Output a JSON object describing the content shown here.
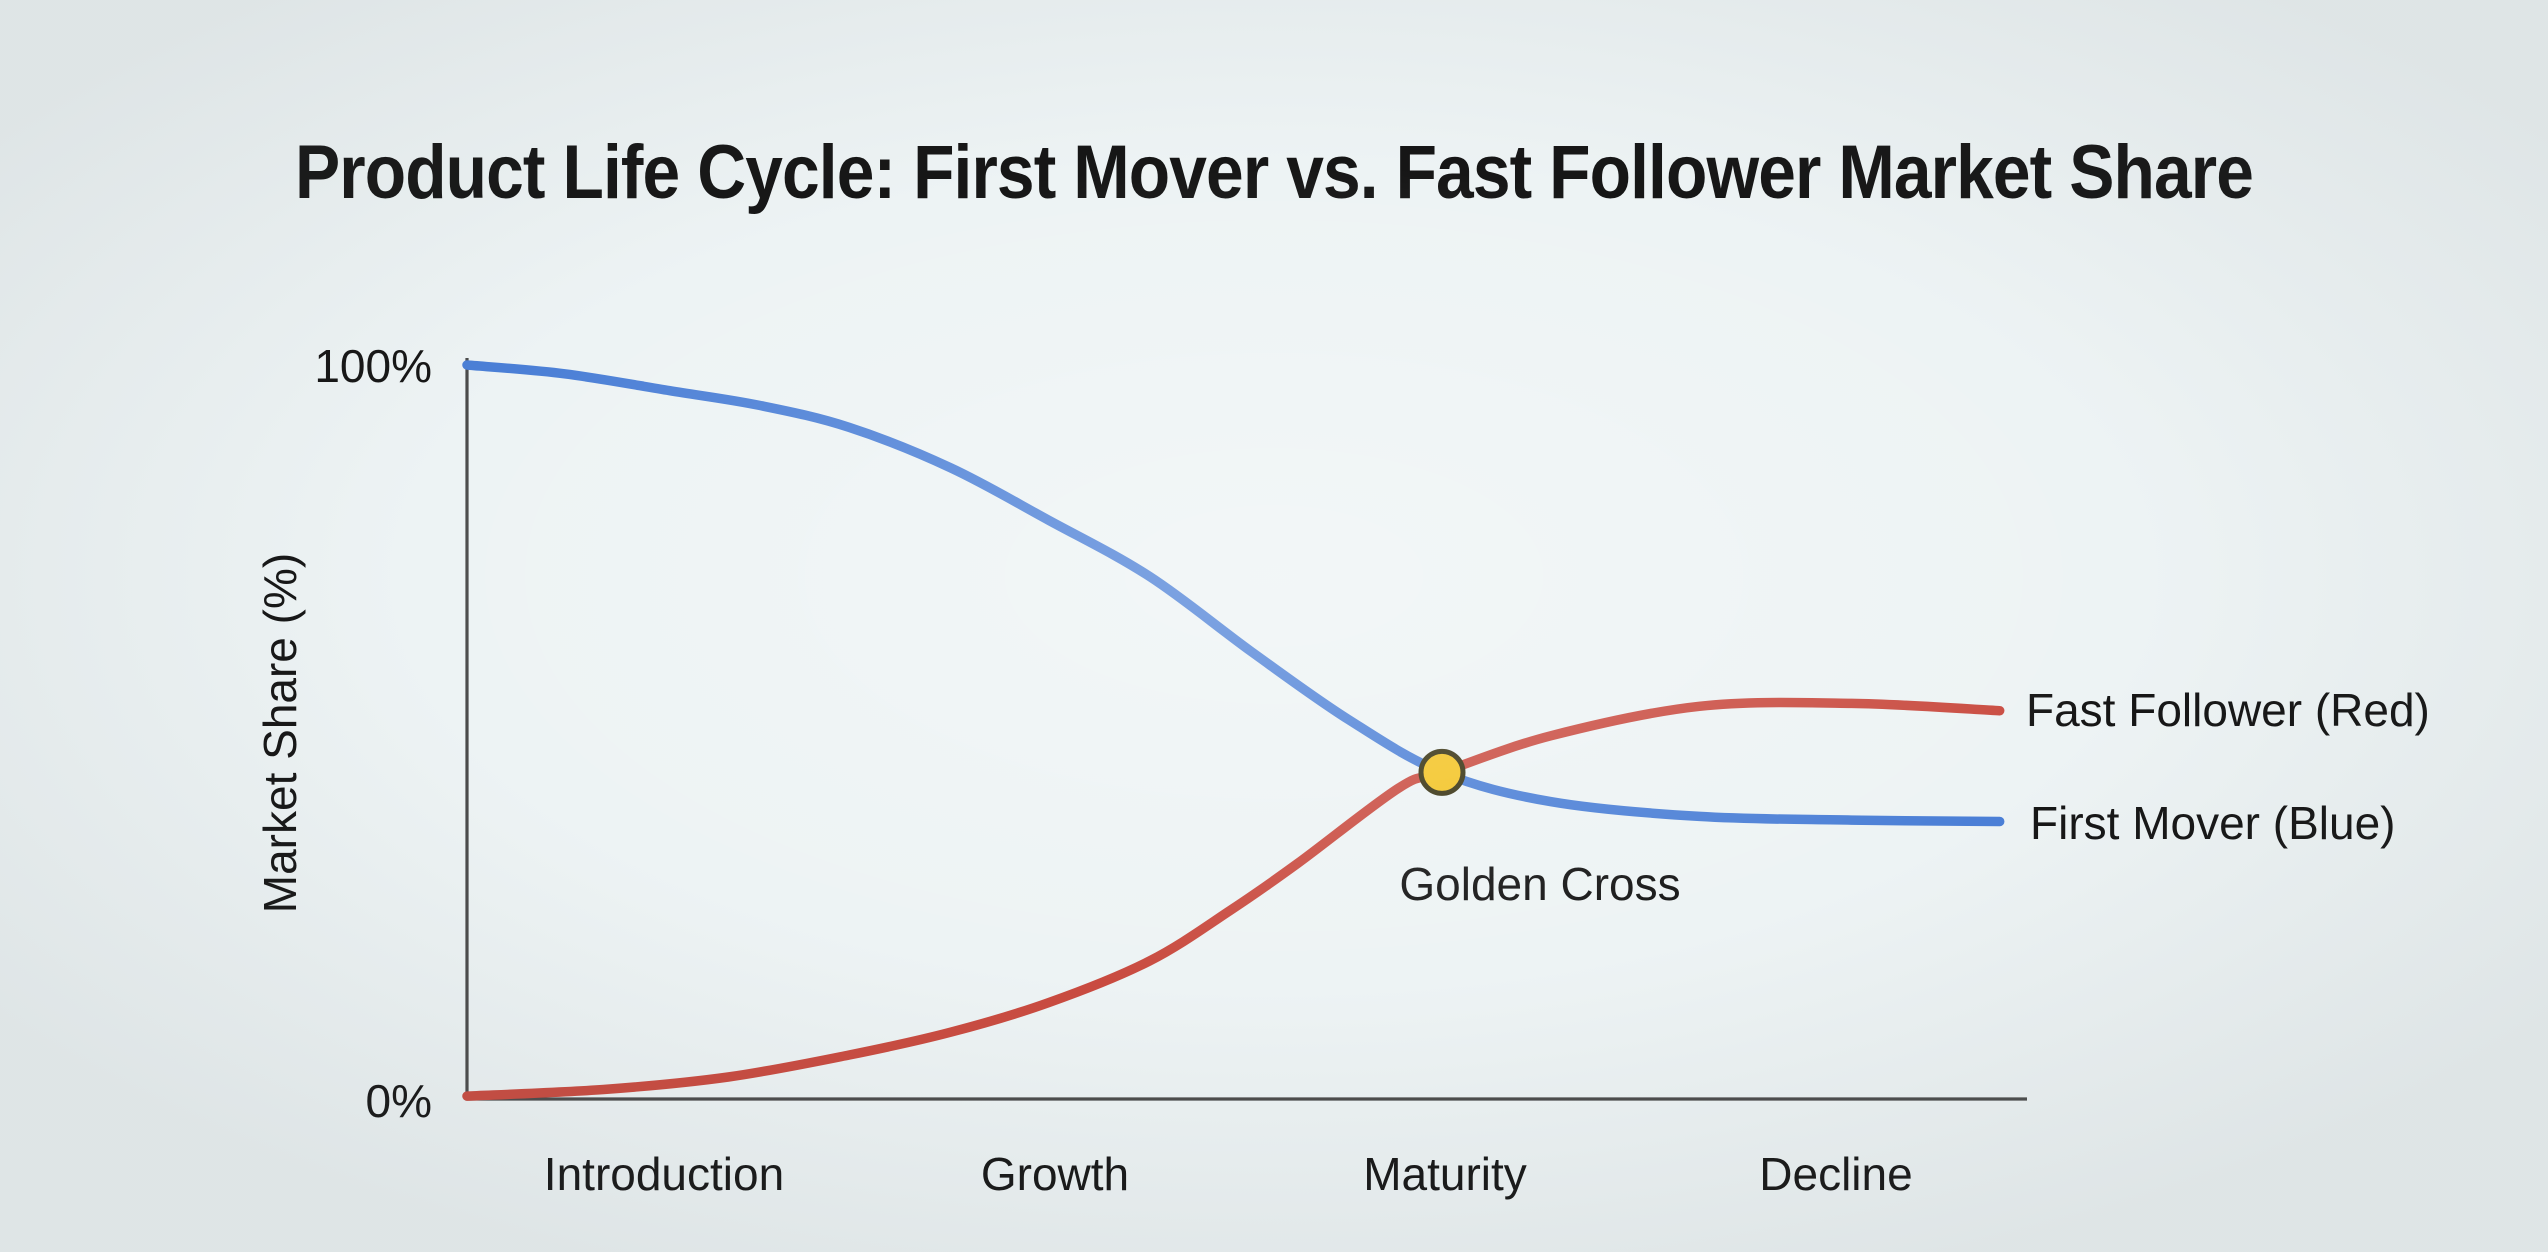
{
  "page": {
    "background": "#edf3f4"
  },
  "chart_data": {
    "type": "line",
    "title": "Product Life Cycle: First Mover vs. Fast Follower Market Share",
    "xlabel": "",
    "ylabel": "Market Share (%)",
    "ylim": [
      0,
      100
    ],
    "grid": false,
    "y_tick_labels": {
      "top": "100%",
      "bottom": "0%"
    },
    "x_stage_labels": [
      "Introduction",
      "Growth",
      "Maturity",
      "Decline"
    ],
    "legend_position": "right-of-line-ends",
    "axis_color": "#4b4b4b",
    "text_color": "#161616",
    "series": [
      {
        "id": "first_mover",
        "label": "First Mover (Blue)",
        "color": "#4b7fd6",
        "x_stage": [
          0,
          0.25,
          0.52,
          0.75,
          0.98,
          1.24,
          1.49,
          1.75,
          2.01,
          2.26,
          2.5,
          2.78,
          3.16,
          3.55,
          3.93
        ],
        "y_pct": [
          100,
          98.8,
          96.5,
          94.5,
          91.5,
          86.0,
          78.9,
          71.2,
          61.0,
          51.7,
          44.5,
          40.5,
          38.5,
          38.0,
          37.8
        ]
      },
      {
        "id": "fast_follower",
        "label": "Fast Follower (Red)",
        "color": "#c94b40",
        "x_stage": [
          0,
          0.35,
          0.67,
          0.98,
          1.24,
          1.49,
          1.75,
          1.96,
          2.13,
          2.39,
          2.5,
          2.78,
          3.16,
          3.55,
          3.93
        ],
        "y_pct": [
          0.4,
          1.3,
          3.0,
          6.0,
          9.1,
          13.1,
          18.8,
          25.8,
          32.1,
          42.4,
          44.5,
          49.5,
          53.5,
          53.9,
          52.9
        ]
      }
    ],
    "annotation": {
      "label": "Golden Cross",
      "x_stage": 2.5,
      "y_pct": 44.5,
      "marker_fill": "#f3c322",
      "marker_stroke": "#35300f",
      "marker_radius": 21
    }
  }
}
